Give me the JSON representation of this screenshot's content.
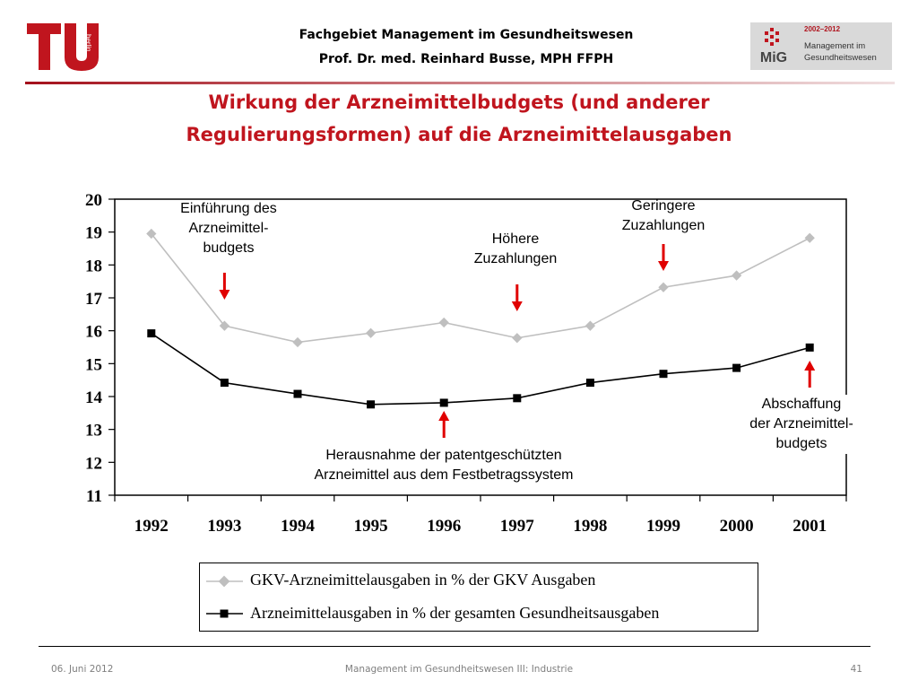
{
  "header": {
    "logo_text": "TU berlin",
    "line1": "Fachgebiet Management im Gesundheitswesen",
    "line2": "Prof. Dr. med. Reinhard Busse, MPH FFPH",
    "mig_logo": {
      "years": "2002–2012",
      "abbr": "MiG",
      "text_line1": "Management im",
      "text_line2": "Gesundheitswesen"
    }
  },
  "title": {
    "line1": "Wirkung der Arzneimittelbudgets (und anderer",
    "line2": "Regulierungsformen) auf die Arzneimittelausgaben"
  },
  "colors": {
    "title": "#c0151e",
    "arrow": "#e00000",
    "series1": "#bfbfbf",
    "series2": "#000000"
  },
  "chart_data": {
    "type": "line",
    "categories": [
      "1992",
      "1993",
      "1994",
      "1995",
      "1996",
      "1997",
      "1998",
      "1999",
      "2000",
      "2001"
    ],
    "yticks": [
      "11",
      "12",
      "13",
      "14",
      "15",
      "16",
      "17",
      "18",
      "19",
      "20"
    ],
    "ylim": [
      11,
      20
    ],
    "grid": false,
    "legend_position": "bottom",
    "series": [
      {
        "name": "GKV-Arzneimittelausgaben in % der GKV Ausgaben",
        "marker": "diamond",
        "values": [
          18.95,
          16.15,
          15.65,
          15.93,
          16.25,
          15.78,
          16.15,
          17.32,
          17.68,
          18.82
        ]
      },
      {
        "name": "Arzneimittelausgaben in % der gesamten Gesundheitsausgaben",
        "marker": "square",
        "values": [
          15.92,
          14.42,
          14.08,
          13.76,
          13.81,
          13.95,
          14.42,
          14.69,
          14.87,
          15.49
        ]
      }
    ],
    "annotations": [
      {
        "lines": [
          "Einführung des",
          "Arzneimittel-",
          "budgets"
        ],
        "arrow_x": "1993",
        "arrow": "down"
      },
      {
        "lines": [
          "Höhere",
          "Zuzahlungen"
        ],
        "arrow_x": "1997",
        "arrow": "down"
      },
      {
        "lines": [
          "Geringere",
          "Zuzahlungen"
        ],
        "arrow_x": "1999",
        "arrow": "down"
      },
      {
        "lines": [
          "Herausnahme der patentgeschützten",
          "Arzneimittel aus dem Festbetragssystem"
        ],
        "arrow_x": "1996",
        "arrow": "up"
      },
      {
        "lines": [
          "Abschaffung",
          "der Arzneimittel-",
          "budgets"
        ],
        "arrow_x": "2001",
        "arrow": "up"
      }
    ]
  },
  "footer": {
    "date": "06. Juni 2012",
    "course": "Management im Gesundheitswesen III: Industrie",
    "page": "41"
  }
}
